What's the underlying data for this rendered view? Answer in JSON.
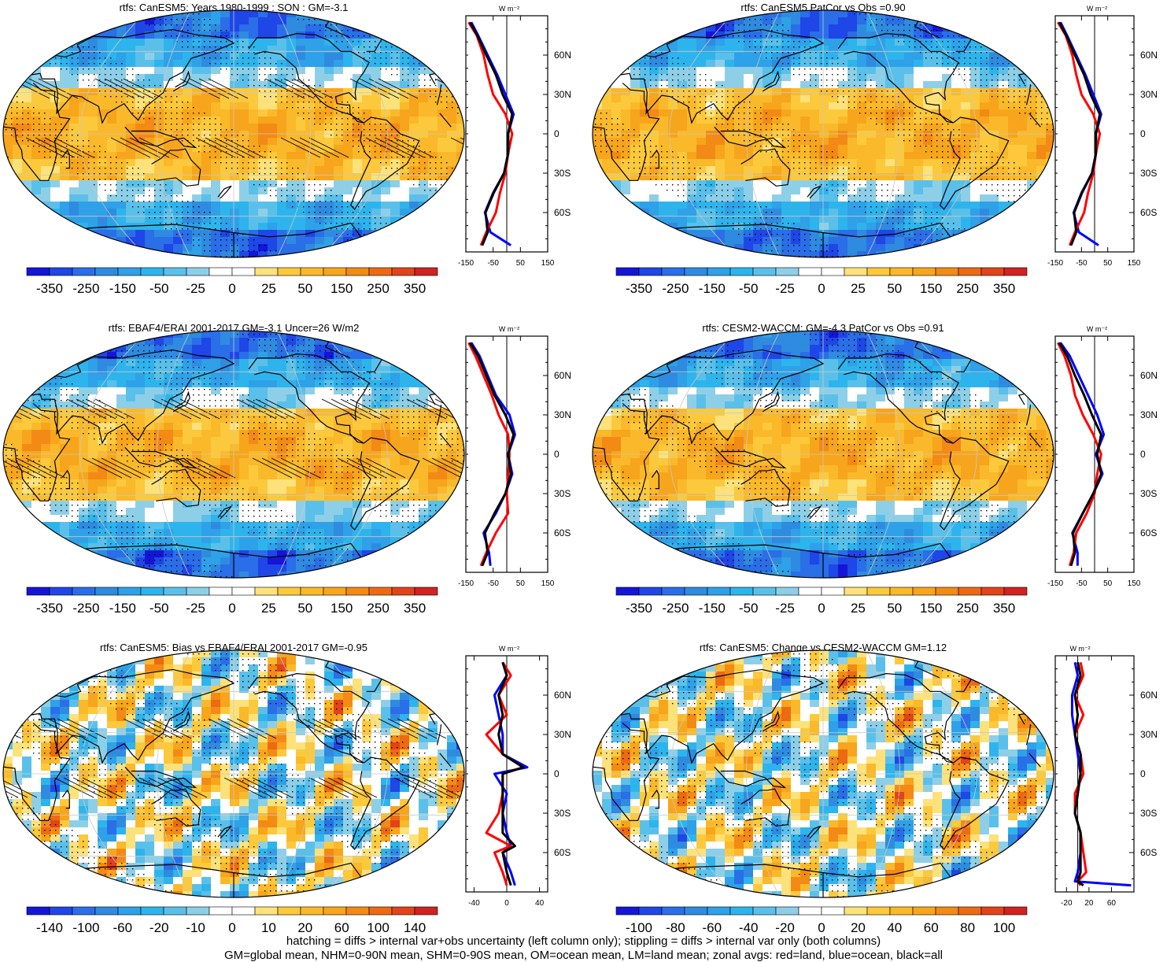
{
  "figure": {
    "caption_line1": "hatching = diffs > internal var+obs uncertainty (left column only); stippling = diffs > internal var only (both columns)",
    "caption_line2": "GM=global mean, NHM=0-90N mean, SHM=0-90S mean, OM=ocean mean, LM=land mean; zonal avgs: red=land, blue=ocean, black=all",
    "zonal_unit_label": "W m⁻²",
    "lat_tick_labels": [
      "60N",
      "30N",
      "0",
      "30S",
      "60S"
    ],
    "colors": {
      "palette": [
        "#1515d8",
        "#1f46e6",
        "#2a6ee8",
        "#2f8be0",
        "#2ea1e8",
        "#2eb4ec",
        "#5ac0ea",
        "#8ecfe8",
        "#ffffff",
        "#ffffff",
        "#fde27c",
        "#fcc93c",
        "#fab92a",
        "#f7a51c",
        "#f38a15",
        "#ec6a13",
        "#e2431a",
        "#d02221"
      ],
      "ocean_line": "#0000ff",
      "land_line": "#ff0000",
      "all_line": "#000000",
      "land_outline": "#000000",
      "grid": "#c8c8c8"
    }
  },
  "chart_data": [
    {
      "type": "heatmap",
      "title": "rtfs: CanESM5: Years 1980-1999 : SON : GM=-3.1",
      "colorbar_labels": [
        "-350",
        "-250",
        "-150",
        "-50",
        "-25",
        "0",
        "25",
        "50",
        "150",
        "250",
        "350"
      ],
      "zonal_x_ticks": [
        "-150",
        "-50",
        "50",
        "150"
      ],
      "zonal_xlim": [
        -150,
        150
      ],
      "zonal_ylim": [
        -90,
        90
      ],
      "zonal_lat": [
        85,
        75,
        60,
        45,
        30,
        15,
        0,
        -15,
        -30,
        -45,
        -60,
        -75,
        -85
      ],
      "zonal_land": [
        -140,
        -110,
        -85,
        -70,
        -50,
        -5,
        20,
        5,
        -5,
        -25,
        -40,
        -75,
        -95
      ],
      "zonal_ocean": [
        -130,
        -105,
        -70,
        -35,
        -5,
        25,
        5,
        5,
        -10,
        -50,
        -80,
        -60,
        15
      ],
      "zonal_all": [
        -135,
        -108,
        -75,
        -40,
        -15,
        20,
        5,
        5,
        -10,
        -48,
        -78,
        -70,
        -90
      ],
      "hatching": true
    },
    {
      "type": "heatmap",
      "title": "rtfs: CanESM5 PatCor vs Obs =0.90",
      "colorbar_labels": [
        "-350",
        "-250",
        "-150",
        "-50",
        "-25",
        "0",
        "25",
        "50",
        "150",
        "250",
        "350"
      ],
      "zonal_x_ticks": [
        "-150",
        "-50",
        "50",
        "150"
      ],
      "zonal_xlim": [
        -150,
        150
      ],
      "zonal_ylim": [
        -90,
        90
      ],
      "zonal_lat": [
        85,
        75,
        60,
        45,
        30,
        15,
        0,
        -15,
        -30,
        -45,
        -60,
        -75,
        -85
      ],
      "zonal_land": [
        -140,
        -110,
        -85,
        -70,
        -50,
        -5,
        20,
        5,
        -5,
        -25,
        -40,
        -75,
        -95
      ],
      "zonal_ocean": [
        -130,
        -105,
        -70,
        -35,
        -5,
        25,
        5,
        5,
        -10,
        -50,
        -80,
        -60,
        15
      ],
      "zonal_all": [
        -135,
        -108,
        -75,
        -40,
        -15,
        20,
        5,
        5,
        -10,
        -48,
        -78,
        -70,
        -90
      ],
      "hatching": false
    },
    {
      "type": "heatmap",
      "title": "rtfs: EBAF4/ERAI 2001-2017 GM=-3.1 Uncer=26 W/m2",
      "colorbar_labels": [
        "-350",
        "-250",
        "-150",
        "-50",
        "-25",
        "0",
        "25",
        "50",
        "150",
        "250",
        "350"
      ],
      "zonal_x_ticks": [
        "-150",
        "-50",
        "50",
        "150"
      ],
      "zonal_xlim": [
        -150,
        150
      ],
      "zonal_ylim": [
        -90,
        90
      ],
      "zonal_lat": [
        85,
        75,
        60,
        45,
        30,
        15,
        0,
        -15,
        -30,
        -45,
        -60,
        -75,
        -85
      ],
      "zonal_land": [
        -140,
        -115,
        -85,
        -55,
        -30,
        5,
        10,
        5,
        0,
        5,
        -40,
        -75,
        -95
      ],
      "zonal_ocean": [
        -130,
        -100,
        -70,
        -40,
        10,
        30,
        5,
        20,
        -5,
        -40,
        -85,
        -65,
        -60
      ],
      "zonal_all": [
        -135,
        -105,
        -75,
        -45,
        -5,
        25,
        5,
        15,
        -5,
        -45,
        -80,
        -70,
        -90
      ],
      "hatching": true
    },
    {
      "type": "heatmap",
      "title": "rtfs: CESM2-WACCM: GM=-4.3 PatCor vs Obs =0.91",
      "colorbar_labels": [
        "-350",
        "-250",
        "-150",
        "-50",
        "-25",
        "0",
        "25",
        "50",
        "150",
        "250",
        "350"
      ],
      "zonal_x_ticks": [
        "-150",
        "-50",
        "50",
        "150"
      ],
      "zonal_xlim": [
        -150,
        150
      ],
      "zonal_ylim": [
        -90,
        90
      ],
      "zonal_lat": [
        85,
        75,
        60,
        45,
        30,
        15,
        0,
        -15,
        -30,
        -45,
        -60,
        -75,
        -85
      ],
      "zonal_land": [
        -140,
        -115,
        -90,
        -75,
        -45,
        -5,
        25,
        10,
        0,
        -30,
        -70,
        -80,
        -95
      ],
      "zonal_ocean": [
        -130,
        -95,
        -60,
        -25,
        10,
        35,
        5,
        30,
        -5,
        -45,
        -85,
        -65,
        -65
      ],
      "zonal_all": [
        -135,
        -105,
        -75,
        -40,
        -10,
        25,
        10,
        25,
        -5,
        -45,
        -82,
        -75,
        -90
      ],
      "hatching": false
    },
    {
      "type": "heatmap",
      "title": "rtfs: CanESM5: Bias vs EBAF4/ERAI 2001-2017  GM=-0.95",
      "colorbar_labels": [
        "-140",
        "-100",
        "-60",
        "-20",
        "-10",
        "0",
        "10",
        "20",
        "60",
        "100",
        "140"
      ],
      "zonal_x_ticks": [
        "-40",
        "0",
        "40"
      ],
      "zonal_xlim": [
        -50,
        50
      ],
      "zonal_ylim": [
        -90,
        90
      ],
      "zonal_lat": [
        85,
        75,
        60,
        45,
        30,
        15,
        5,
        0,
        -15,
        -30,
        -45,
        -55,
        -60,
        -75,
        -85
      ],
      "zonal_land": [
        -5,
        5,
        -10,
        0,
        -25,
        -5,
        20,
        -5,
        -5,
        -10,
        -25,
        5,
        -15,
        -5,
        0
      ],
      "zonal_ocean": [
        -5,
        0,
        -15,
        -10,
        -5,
        -5,
        25,
        -15,
        0,
        -5,
        0,
        5,
        -5,
        5,
        10
      ],
      "zonal_all": [
        -5,
        0,
        -10,
        -5,
        -10,
        -5,
        20,
        -5,
        -5,
        -5,
        -5,
        10,
        -5,
        0,
        5
      ],
      "hatching": true
    },
    {
      "type": "heatmap",
      "title": "rtfs: CanESM5: Change vs CESM2-WACCM GM=1.12",
      "colorbar_labels": [
        "-100",
        "-80",
        "-60",
        "-40",
        "-20",
        "0",
        "20",
        "40",
        "60",
        "80",
        "100"
      ],
      "zonal_x_ticks": [
        "-20",
        "20",
        "60"
      ],
      "zonal_xlim": [
        -40,
        100
      ],
      "zonal_ylim": [
        -90,
        90
      ],
      "zonal_lat": [
        85,
        75,
        60,
        45,
        30,
        15,
        0,
        -15,
        -30,
        -45,
        -60,
        -75,
        -82,
        -85
      ],
      "zonal_land": [
        5,
        10,
        -5,
        10,
        -5,
        5,
        10,
        -5,
        -5,
        5,
        10,
        15,
        0,
        5
      ],
      "zonal_ocean": [
        -5,
        0,
        -10,
        -10,
        -5,
        0,
        5,
        0,
        -5,
        5,
        5,
        0,
        -5,
        95
      ],
      "zonal_all": [
        0,
        5,
        -5,
        0,
        -5,
        5,
        5,
        0,
        -5,
        5,
        5,
        5,
        0,
        10
      ],
      "hatching": false
    }
  ]
}
